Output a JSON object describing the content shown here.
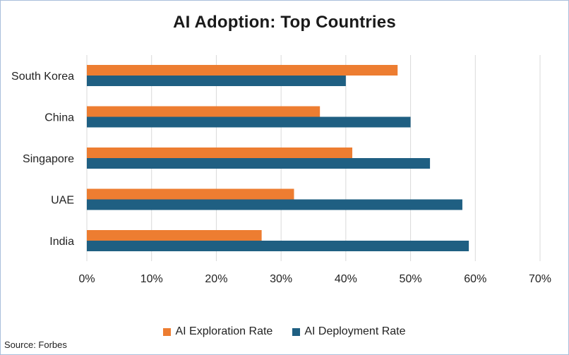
{
  "chart_data": {
    "type": "bar",
    "orientation": "horizontal",
    "title": "AI Adoption: Top Countries",
    "categories": [
      "South Korea",
      "China",
      "Singapore",
      "UAE",
      "India"
    ],
    "series": [
      {
        "name": "AI Exploration Rate",
        "color": "#ed7d31",
        "values": [
          48,
          36,
          41,
          32,
          27
        ]
      },
      {
        "name": "AI Deployment Rate",
        "color": "#1f5f82",
        "values": [
          40,
          50,
          53,
          58,
          59
        ]
      }
    ],
    "xlim": [
      0,
      70
    ],
    "xticks": [
      "0%",
      "10%",
      "20%",
      "30%",
      "40%",
      "50%",
      "60%",
      "70%"
    ],
    "xlabel": "",
    "ylabel": "",
    "grid": "vertical",
    "legend": "bottom",
    "source": "Source: Forbes"
  }
}
